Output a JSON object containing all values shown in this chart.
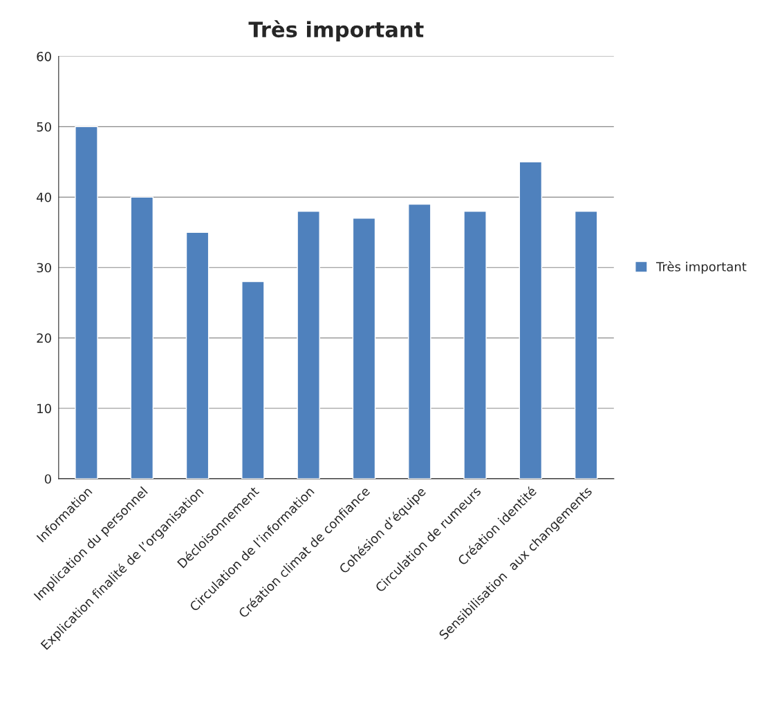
{
  "chart_data": {
    "type": "bar",
    "title": "Très important",
    "categories": [
      "Information",
      "Implication du personnel",
      "Explication finalité de l’organisation",
      "Décloisonnement",
      "Circulation de l’information",
      "Création climat de confiance",
      "Cohésion d’équipe",
      "Circulation de rumeurs",
      "Création identité",
      "Sensibilisation  aux changements"
    ],
    "series": [
      {
        "name": "Très important",
        "color": "#4f81bd",
        "values": [
          50,
          40,
          35,
          28,
          38,
          37,
          39,
          38,
          45,
          38
        ]
      }
    ],
    "ylim": [
      0,
      60
    ],
    "yticks": [
      0,
      10,
      20,
      30,
      40,
      50,
      60
    ],
    "grid": "y",
    "legend": "right"
  }
}
